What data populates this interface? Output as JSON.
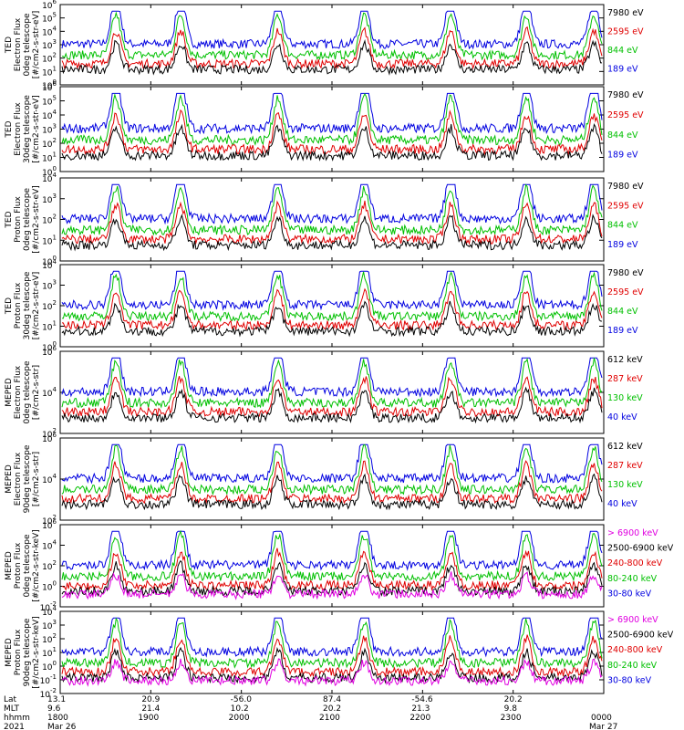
{
  "chart_data": {
    "type": "line",
    "x_ticks": [
      "1800",
      "1900",
      "2000",
      "2100",
      "2200",
      "2300",
      "0000"
    ],
    "footer": {
      "row_labels": [
        "Lat",
        "MLT",
        "hhmm",
        "2021"
      ],
      "lat": [
        "13.1",
        "20.9",
        "-56.0",
        "87.4",
        "-54.6",
        "20.2"
      ],
      "mlt": [
        "9.6",
        "21.4",
        "10.2",
        "20.2",
        "21.3",
        "9.8"
      ],
      "hhmm": [
        "1800",
        "1900",
        "2000",
        "2100",
        "2200",
        "2300",
        "0000"
      ],
      "dates": [
        "Mar 26",
        "Mar 27"
      ]
    },
    "panels": [
      {
        "id": "ted-e-0",
        "ylabel": [
          "TED",
          "Electron Flux",
          "0deg telescope",
          "[#/cm2-s-str-eV]"
        ],
        "ytick_exp": [
          0,
          1,
          2,
          3,
          4,
          5,
          6
        ],
        "log": true,
        "legend": [
          {
            "text": "7980 eV",
            "color": "#000000"
          },
          {
            "text": "2595 eV",
            "color": "#e00000"
          },
          {
            "text": "844 eV",
            "color": "#00c000"
          },
          {
            "text": "189 eV",
            "color": "#0000e0"
          }
        ]
      },
      {
        "id": "ted-e-30",
        "ylabel": [
          "TED",
          "Electron Flux",
          "30deg telescope",
          "[#/cm2-s-str-eV]"
        ],
        "ytick_exp": [
          0,
          1,
          2,
          3,
          4,
          5,
          6
        ],
        "log": true,
        "legend": [
          {
            "text": "7980 eV",
            "color": "#000000"
          },
          {
            "text": "2595 eV",
            "color": "#e00000"
          },
          {
            "text": "844 eV",
            "color": "#00c000"
          },
          {
            "text": "189 eV",
            "color": "#0000e0"
          }
        ]
      },
      {
        "id": "ted-p-0",
        "ylabel": [
          "TED",
          "Proton Flux",
          "0deg telescope",
          "[#/cm2-s-str-eV]"
        ],
        "ytick_exp": [
          0,
          1,
          2,
          3,
          4
        ],
        "log": true,
        "legend": [
          {
            "text": "7980 eV",
            "color": "#000000"
          },
          {
            "text": "2595 eV",
            "color": "#e00000"
          },
          {
            "text": "844 eV",
            "color": "#00c000"
          },
          {
            "text": "189 eV",
            "color": "#0000e0"
          }
        ]
      },
      {
        "id": "ted-p-30",
        "ylabel": [
          "TED",
          "Proton Flux",
          "30deg telescope",
          "[#/cm2-s-str-eV]"
        ],
        "ytick_exp": [
          0,
          1,
          2,
          3,
          4
        ],
        "log": true,
        "legend": [
          {
            "text": "7980 eV",
            "color": "#000000"
          },
          {
            "text": "2595 eV",
            "color": "#e00000"
          },
          {
            "text": "844 eV",
            "color": "#00c000"
          },
          {
            "text": "189 eV",
            "color": "#0000e0"
          }
        ]
      },
      {
        "id": "meped-e-0",
        "ylabel": [
          "MEPED",
          "Electron Flux",
          "0deg telescope",
          "[#/cm2-s-str]"
        ],
        "ytick_exp": [
          2,
          4,
          6
        ],
        "log": true,
        "legend": [
          {
            "text": "612 keV",
            "color": "#000000"
          },
          {
            "text": "287 keV",
            "color": "#e00000"
          },
          {
            "text": "130 keV",
            "color": "#00c000"
          },
          {
            "text": "40 keV",
            "color": "#0000e0"
          }
        ]
      },
      {
        "id": "meped-e-90",
        "ylabel": [
          "MEPED",
          "Electron Flux",
          "90deg telescope",
          "[#/cm2-s-str]"
        ],
        "ytick_exp": [
          2,
          4,
          6
        ],
        "log": true,
        "legend": [
          {
            "text": "612 keV",
            "color": "#000000"
          },
          {
            "text": "287 keV",
            "color": "#e00000"
          },
          {
            "text": "130 keV",
            "color": "#00c000"
          },
          {
            "text": "40 keV",
            "color": "#0000e0"
          }
        ]
      },
      {
        "id": "meped-p-0",
        "ylabel": [
          "MEPED",
          "Proton Flux",
          "0deg telescope",
          "[#/cm2-s-str-keV]"
        ],
        "ytick_exp": [
          -2,
          0,
          2,
          4,
          6
        ],
        "log": true,
        "legend": [
          {
            "text": "> 6900 keV",
            "color": "#e000e0"
          },
          {
            "text": "2500-6900 keV",
            "color": "#000000"
          },
          {
            "text": "240-800 keV",
            "color": "#e00000"
          },
          {
            "text": "80-240 keV",
            "color": "#00c000"
          },
          {
            "text": "30-80 keV",
            "color": "#0000e0"
          }
        ]
      },
      {
        "id": "meped-p-90",
        "ylabel": [
          "MEPED",
          "Proton Flux",
          "90deg telescope",
          "[#/cm2-s-str-keV]"
        ],
        "ytick_exp": [
          -2,
          -1,
          0,
          1,
          2,
          3,
          4
        ],
        "log": true,
        "legend": [
          {
            "text": "> 6900 keV",
            "color": "#e000e0"
          },
          {
            "text": "2500-6900 keV",
            "color": "#000000"
          },
          {
            "text": "240-800 keV",
            "color": "#e00000"
          },
          {
            "text": "80-240 keV",
            "color": "#00c000"
          },
          {
            "text": "30-80 keV",
            "color": "#0000e0"
          }
        ]
      }
    ]
  }
}
